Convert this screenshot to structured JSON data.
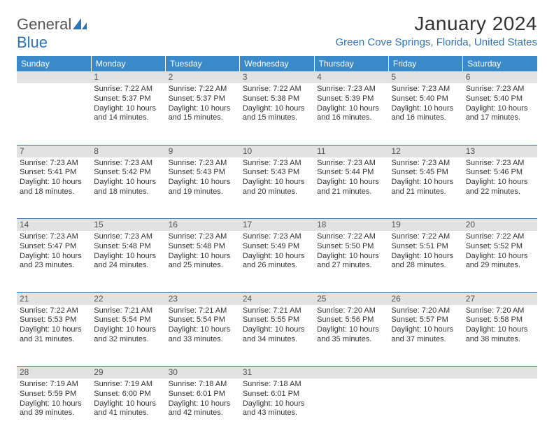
{
  "logo": {
    "word1": "General",
    "word2": "Blue",
    "color_gray": "#555555",
    "color_blue": "#2f74b5"
  },
  "title": "January 2024",
  "location": "Green Cove Springs, Florida, United States",
  "header_bg": "#3a8ac9",
  "daynum_bg": "#e2e2e2",
  "border_color": "#2f74b5",
  "weekdays": [
    "Sunday",
    "Monday",
    "Tuesday",
    "Wednesday",
    "Thursday",
    "Friday",
    "Saturday"
  ],
  "weeks": [
    {
      "nums": [
        "",
        "1",
        "2",
        "3",
        "4",
        "5",
        "6"
      ],
      "cells": [
        null,
        {
          "sunrise": "Sunrise: 7:22 AM",
          "sunset": "Sunset: 5:37 PM",
          "d1": "Daylight: 10 hours",
          "d2": "and 14 minutes."
        },
        {
          "sunrise": "Sunrise: 7:22 AM",
          "sunset": "Sunset: 5:37 PM",
          "d1": "Daylight: 10 hours",
          "d2": "and 15 minutes."
        },
        {
          "sunrise": "Sunrise: 7:22 AM",
          "sunset": "Sunset: 5:38 PM",
          "d1": "Daylight: 10 hours",
          "d2": "and 15 minutes."
        },
        {
          "sunrise": "Sunrise: 7:23 AM",
          "sunset": "Sunset: 5:39 PM",
          "d1": "Daylight: 10 hours",
          "d2": "and 16 minutes."
        },
        {
          "sunrise": "Sunrise: 7:23 AM",
          "sunset": "Sunset: 5:40 PM",
          "d1": "Daylight: 10 hours",
          "d2": "and 16 minutes."
        },
        {
          "sunrise": "Sunrise: 7:23 AM",
          "sunset": "Sunset: 5:40 PM",
          "d1": "Daylight: 10 hours",
          "d2": "and 17 minutes."
        }
      ]
    },
    {
      "nums": [
        "7",
        "8",
        "9",
        "10",
        "11",
        "12",
        "13"
      ],
      "cells": [
        {
          "sunrise": "Sunrise: 7:23 AM",
          "sunset": "Sunset: 5:41 PM",
          "d1": "Daylight: 10 hours",
          "d2": "and 18 minutes."
        },
        {
          "sunrise": "Sunrise: 7:23 AM",
          "sunset": "Sunset: 5:42 PM",
          "d1": "Daylight: 10 hours",
          "d2": "and 18 minutes."
        },
        {
          "sunrise": "Sunrise: 7:23 AM",
          "sunset": "Sunset: 5:43 PM",
          "d1": "Daylight: 10 hours",
          "d2": "and 19 minutes."
        },
        {
          "sunrise": "Sunrise: 7:23 AM",
          "sunset": "Sunset: 5:43 PM",
          "d1": "Daylight: 10 hours",
          "d2": "and 20 minutes."
        },
        {
          "sunrise": "Sunrise: 7:23 AM",
          "sunset": "Sunset: 5:44 PM",
          "d1": "Daylight: 10 hours",
          "d2": "and 21 minutes."
        },
        {
          "sunrise": "Sunrise: 7:23 AM",
          "sunset": "Sunset: 5:45 PM",
          "d1": "Daylight: 10 hours",
          "d2": "and 21 minutes."
        },
        {
          "sunrise": "Sunrise: 7:23 AM",
          "sunset": "Sunset: 5:46 PM",
          "d1": "Daylight: 10 hours",
          "d2": "and 22 minutes."
        }
      ]
    },
    {
      "nums": [
        "14",
        "15",
        "16",
        "17",
        "18",
        "19",
        "20"
      ],
      "cells": [
        {
          "sunrise": "Sunrise: 7:23 AM",
          "sunset": "Sunset: 5:47 PM",
          "d1": "Daylight: 10 hours",
          "d2": "and 23 minutes."
        },
        {
          "sunrise": "Sunrise: 7:23 AM",
          "sunset": "Sunset: 5:48 PM",
          "d1": "Daylight: 10 hours",
          "d2": "and 24 minutes."
        },
        {
          "sunrise": "Sunrise: 7:23 AM",
          "sunset": "Sunset: 5:48 PM",
          "d1": "Daylight: 10 hours",
          "d2": "and 25 minutes."
        },
        {
          "sunrise": "Sunrise: 7:23 AM",
          "sunset": "Sunset: 5:49 PM",
          "d1": "Daylight: 10 hours",
          "d2": "and 26 minutes."
        },
        {
          "sunrise": "Sunrise: 7:22 AM",
          "sunset": "Sunset: 5:50 PM",
          "d1": "Daylight: 10 hours",
          "d2": "and 27 minutes."
        },
        {
          "sunrise": "Sunrise: 7:22 AM",
          "sunset": "Sunset: 5:51 PM",
          "d1": "Daylight: 10 hours",
          "d2": "and 28 minutes."
        },
        {
          "sunrise": "Sunrise: 7:22 AM",
          "sunset": "Sunset: 5:52 PM",
          "d1": "Daylight: 10 hours",
          "d2": "and 29 minutes."
        }
      ]
    },
    {
      "nums": [
        "21",
        "22",
        "23",
        "24",
        "25",
        "26",
        "27"
      ],
      "cells": [
        {
          "sunrise": "Sunrise: 7:22 AM",
          "sunset": "Sunset: 5:53 PM",
          "d1": "Daylight: 10 hours",
          "d2": "and 31 minutes."
        },
        {
          "sunrise": "Sunrise: 7:21 AM",
          "sunset": "Sunset: 5:54 PM",
          "d1": "Daylight: 10 hours",
          "d2": "and 32 minutes."
        },
        {
          "sunrise": "Sunrise: 7:21 AM",
          "sunset": "Sunset: 5:54 PM",
          "d1": "Daylight: 10 hours",
          "d2": "and 33 minutes."
        },
        {
          "sunrise": "Sunrise: 7:21 AM",
          "sunset": "Sunset: 5:55 PM",
          "d1": "Daylight: 10 hours",
          "d2": "and 34 minutes."
        },
        {
          "sunrise": "Sunrise: 7:20 AM",
          "sunset": "Sunset: 5:56 PM",
          "d1": "Daylight: 10 hours",
          "d2": "and 35 minutes."
        },
        {
          "sunrise": "Sunrise: 7:20 AM",
          "sunset": "Sunset: 5:57 PM",
          "d1": "Daylight: 10 hours",
          "d2": "and 37 minutes."
        },
        {
          "sunrise": "Sunrise: 7:20 AM",
          "sunset": "Sunset: 5:58 PM",
          "d1": "Daylight: 10 hours",
          "d2": "and 38 minutes."
        }
      ]
    },
    {
      "nums": [
        "28",
        "29",
        "30",
        "31",
        "",
        "",
        ""
      ],
      "cells": [
        {
          "sunrise": "Sunrise: 7:19 AM",
          "sunset": "Sunset: 5:59 PM",
          "d1": "Daylight: 10 hours",
          "d2": "and 39 minutes."
        },
        {
          "sunrise": "Sunrise: 7:19 AM",
          "sunset": "Sunset: 6:00 PM",
          "d1": "Daylight: 10 hours",
          "d2": "and 41 minutes."
        },
        {
          "sunrise": "Sunrise: 7:18 AM",
          "sunset": "Sunset: 6:01 PM",
          "d1": "Daylight: 10 hours",
          "d2": "and 42 minutes."
        },
        {
          "sunrise": "Sunrise: 7:18 AM",
          "sunset": "Sunset: 6:01 PM",
          "d1": "Daylight: 10 hours",
          "d2": "and 43 minutes."
        },
        null,
        null,
        null
      ]
    }
  ]
}
